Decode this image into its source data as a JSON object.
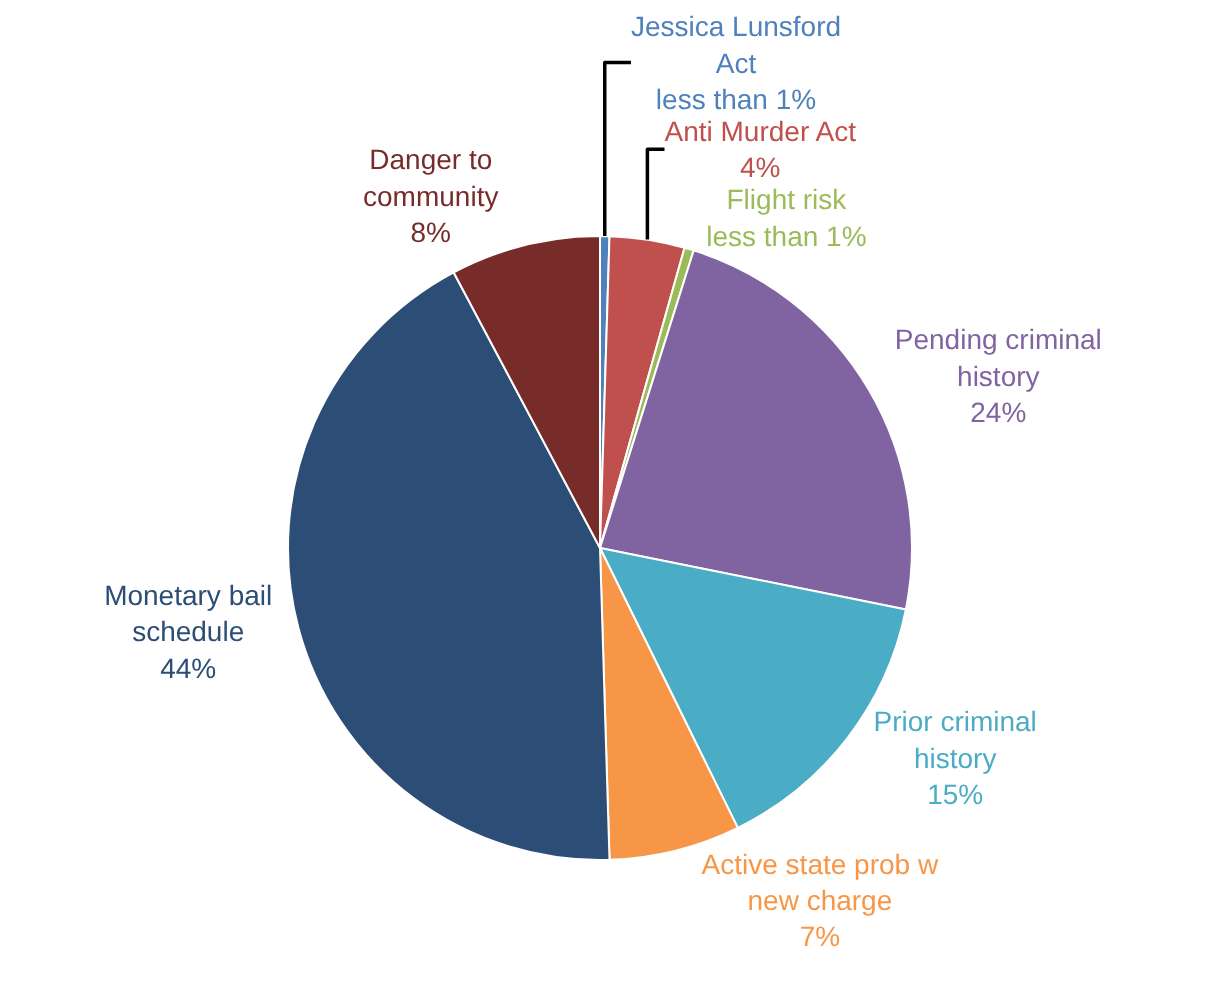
{
  "chart_data": {
    "type": "pie",
    "categories": [
      "Jessica Lunsford Act",
      "Anti Murder Act",
      "Flight risk",
      "Pending criminal history",
      "Prior criminal history",
      "Active state prob w new charge",
      "Monetary bail schedule",
      "Danger to community"
    ],
    "values": [
      0.5,
      4,
      0.5,
      24,
      15,
      7,
      44,
      8
    ],
    "value_labels": [
      "less than 1%",
      "4%",
      "less than 1%",
      "24%",
      "15%",
      "7%",
      "44%",
      "8%"
    ],
    "colors": [
      "#4f81bd",
      "#c0504d",
      "#9bbb59",
      "#8064a2",
      "#4bacc6",
      "#f79646",
      "#2c4d75",
      "#772c2a"
    ],
    "legend": false
  }
}
